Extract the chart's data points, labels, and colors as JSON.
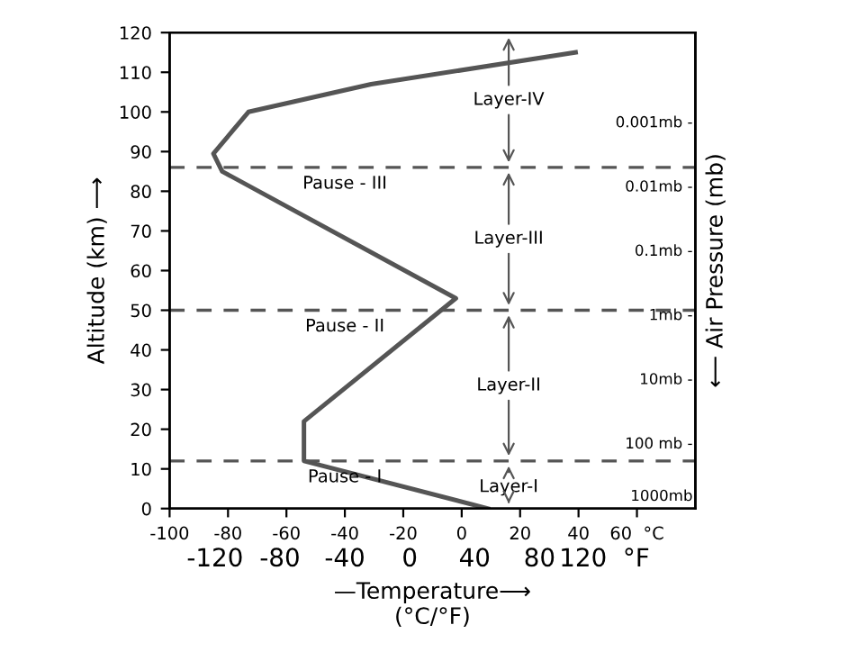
{
  "chart_data": {
    "type": "line",
    "xlabel": "—Temperature⟶\n(°C/°F)",
    "ylabel": "Altitude (km) ⟶",
    "y2label": "⟵ Air Pressure (mb)",
    "series": [
      {
        "color": "#555555",
        "x": [
          9,
          -54,
          -54,
          -2,
          -82,
          -85,
          -73,
          -31,
          39
        ],
        "values": [
          0,
          12,
          22,
          53,
          85,
          89.5,
          100,
          107,
          115
        ]
      }
    ],
    "xlim": [
      -100,
      80
    ],
    "ylim": [
      0,
      120
    ],
    "xticks": [
      -100,
      -80,
      -60,
      -40,
      -20,
      0,
      20,
      40,
      {
        "value": 60,
        "label": "60  °C"
      }
    ],
    "yticks": [
      0,
      10,
      20,
      30,
      40,
      50,
      60,
      70,
      80,
      90,
      100,
      110,
      120
    ],
    "x2lim": [
      -148,
      176
    ],
    "x2ticks": [
      -120,
      -80,
      -40,
      0,
      40,
      80,
      {
        "value": 120,
        "label": "120  °F"
      }
    ],
    "annotations": [
      "Layer-I",
      "Layer-II",
      "Layer-III",
      "Layer-IV",
      "0.001mb -",
      "0.01mb -",
      "0.1mb -",
      "1mb -",
      "10mb -",
      "100 mb -",
      "1000mb"
    ],
    "ref_lines": [
      {
        "axis": "y",
        "value": 12,
        "label": "Pause - I",
        "line_style": "dashed"
      },
      {
        "axis": "y",
        "value": 50,
        "label": "Pause - II",
        "line_style": "dashed"
      },
      {
        "axis": "y",
        "value": 86,
        "label": "Pause - III",
        "line_style": "dashed"
      }
    ],
    "grid": false,
    "marker": "none",
    "line_style": "solid"
  }
}
